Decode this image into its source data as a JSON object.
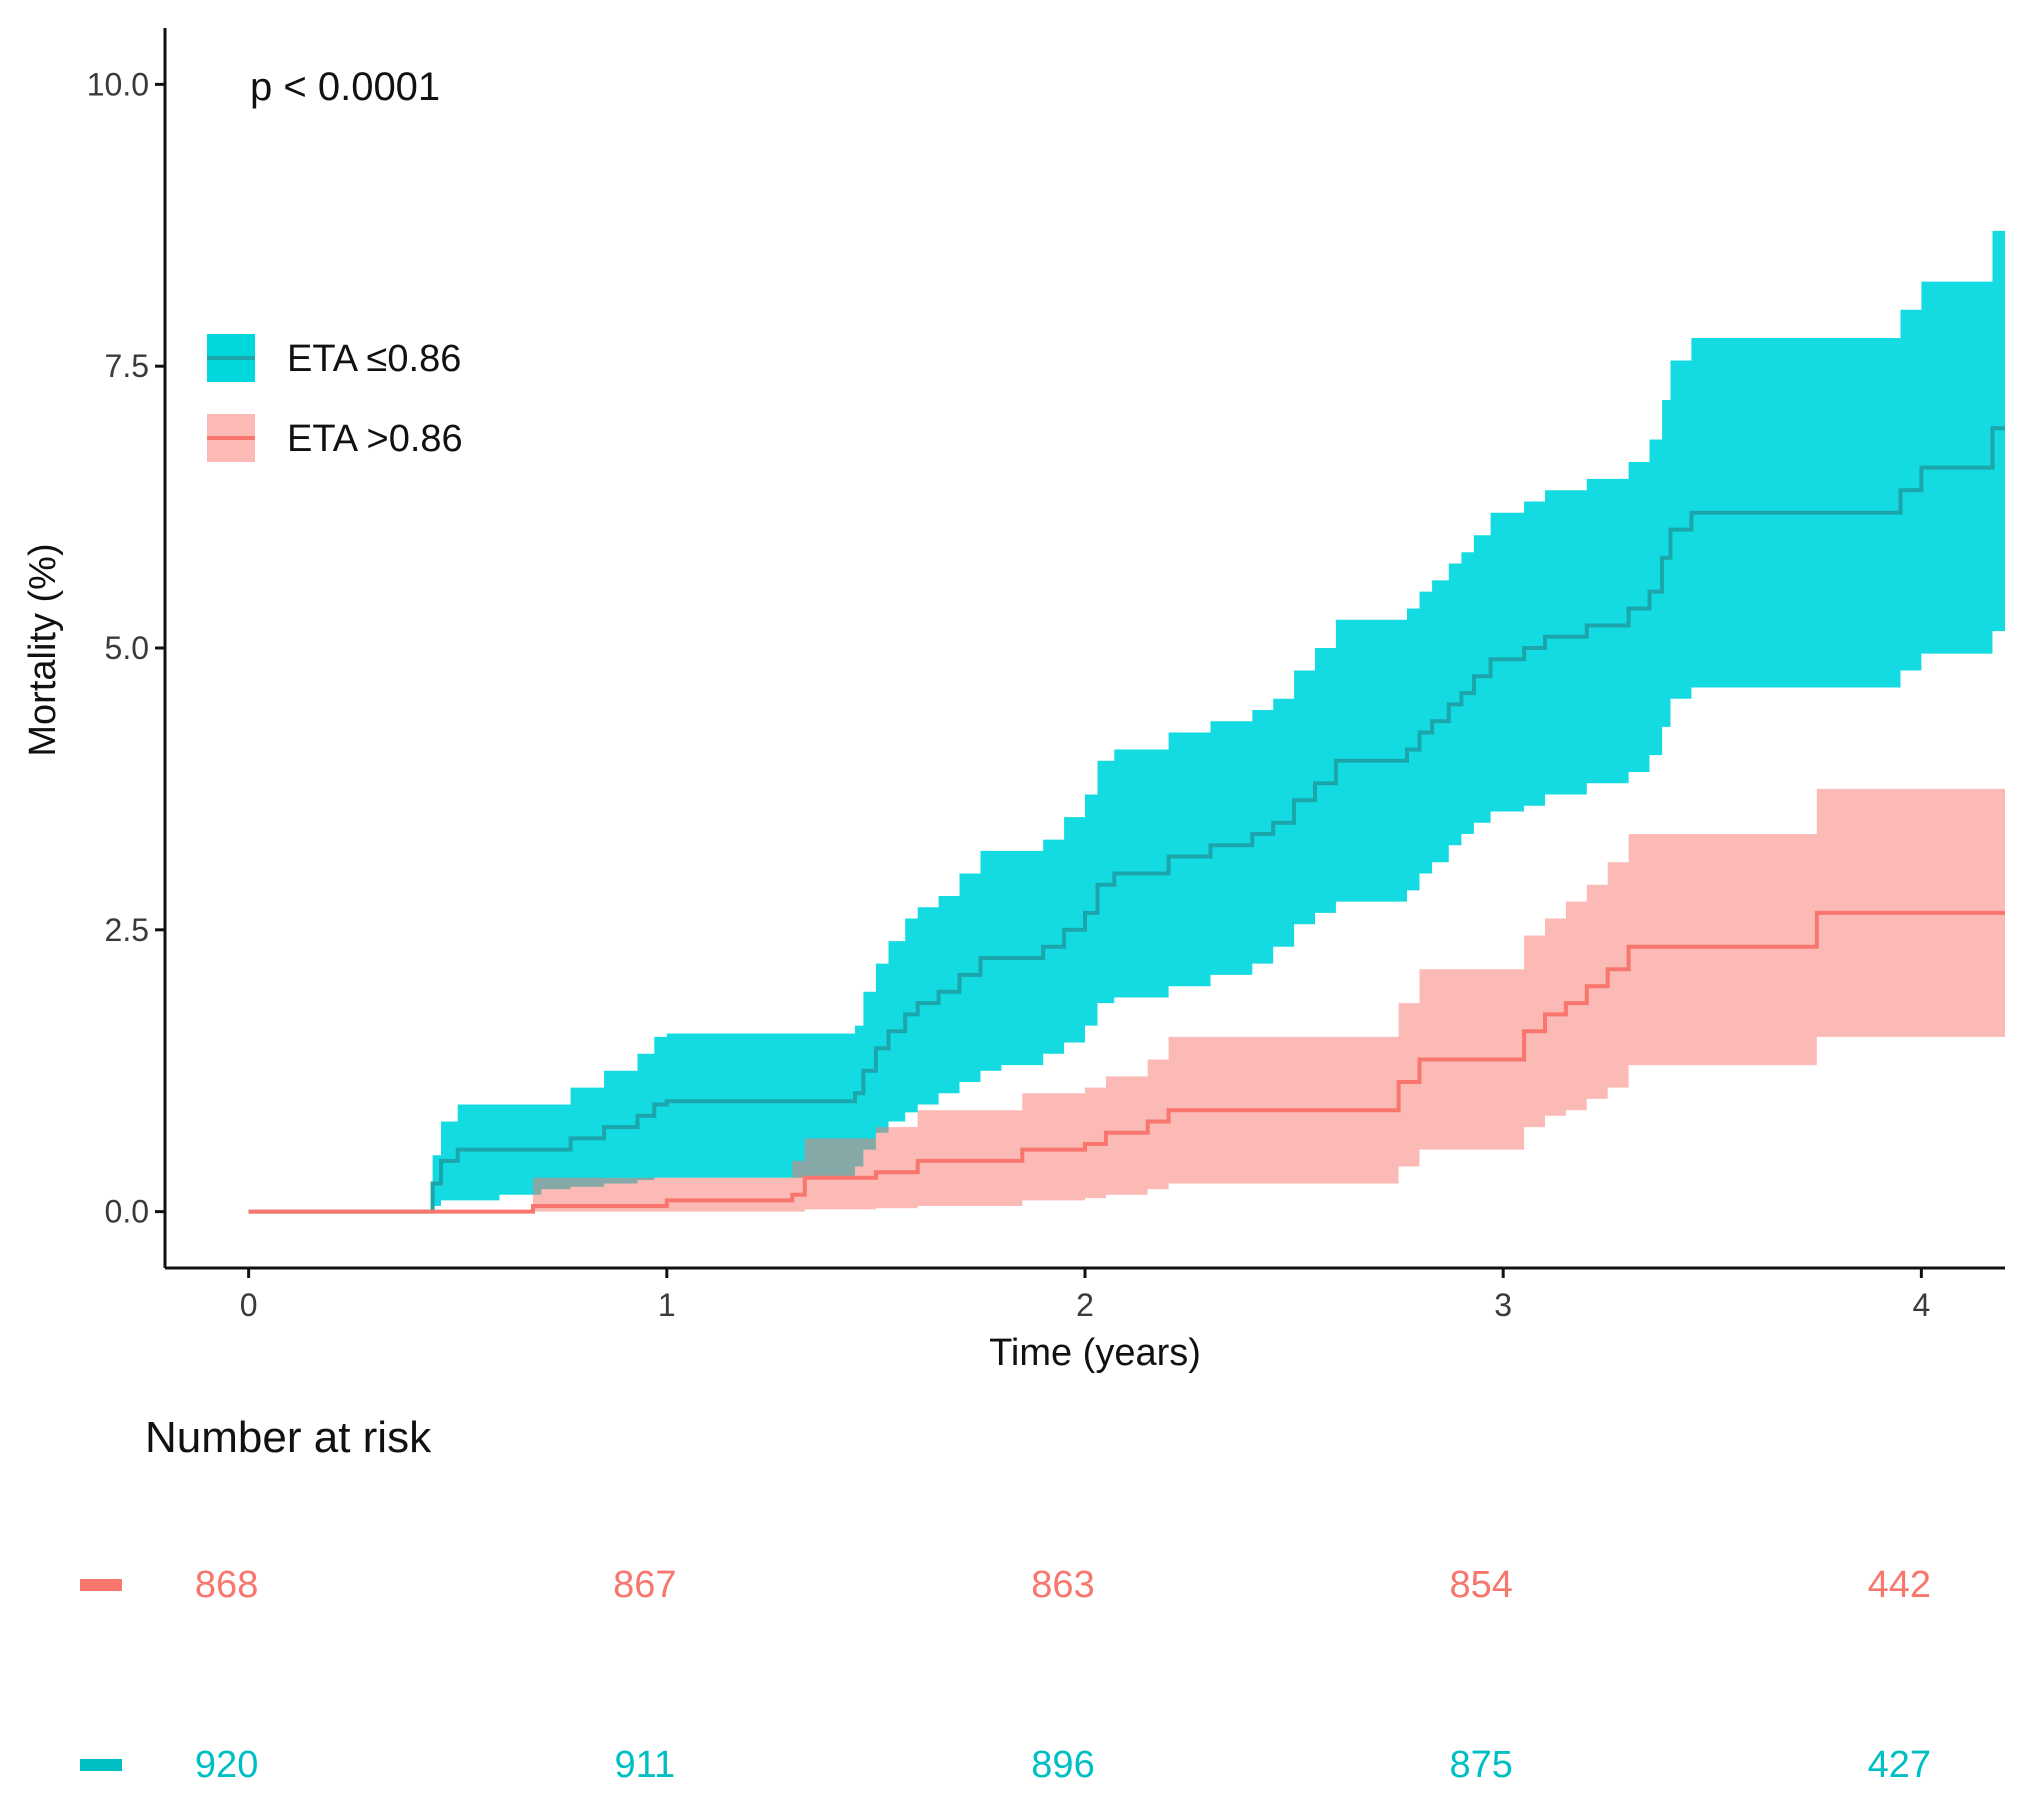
{
  "chart_data": {
    "type": "line",
    "subtype": "kaplan-meier-cumulative-mortality",
    "title": "",
    "annotation": "p < 0.0001",
    "xlabel": "Time (years)",
    "ylabel": "Mortality (%)",
    "xlim": [
      -0.2,
      4.2
    ],
    "ylim": [
      -0.5,
      10.5
    ],
    "xticks": [
      0,
      1,
      2,
      3,
      4
    ],
    "xtick_labels": [
      "0",
      "1",
      "2",
      "3",
      "4"
    ],
    "yticks": [
      0,
      2.5,
      5,
      7.5,
      10
    ],
    "ytick_labels": [
      "0.0",
      "2.5",
      "5.0",
      "7.5",
      "10.0"
    ],
    "grid": false,
    "legend_position": "top-left",
    "series": [
      {
        "name": "ETA ≤0.86",
        "color": "#00BFC4",
        "band_color": "#00D8DE",
        "x": [
          0,
          0.43,
          0.44,
          0.46,
          0.5,
          0.6,
          0.7,
          0.77,
          0.85,
          0.93,
          0.97,
          1.0,
          1.3,
          1.45,
          1.47,
          1.5,
          1.53,
          1.57,
          1.6,
          1.65,
          1.7,
          1.75,
          1.8,
          1.9,
          1.95,
          2.0,
          2.03,
          2.07,
          2.2,
          2.3,
          2.4,
          2.45,
          2.5,
          2.55,
          2.6,
          2.7,
          2.77,
          2.8,
          2.83,
          2.87,
          2.9,
          2.93,
          2.97,
          3.0,
          3.05,
          3.1,
          3.2,
          3.3,
          3.35,
          3.38,
          3.4,
          3.45,
          3.5,
          3.7,
          3.9,
          3.95,
          4.0,
          4.17,
          4.2
        ],
        "y": [
          0,
          0,
          0.25,
          0.45,
          0.55,
          0.55,
          0.55,
          0.65,
          0.75,
          0.85,
          0.95,
          0.98,
          0.98,
          1.05,
          1.25,
          1.45,
          1.6,
          1.75,
          1.85,
          1.95,
          2.1,
          2.25,
          2.25,
          2.35,
          2.5,
          2.65,
          2.9,
          3.0,
          3.15,
          3.25,
          3.35,
          3.45,
          3.65,
          3.8,
          4.0,
          4.0,
          4.1,
          4.25,
          4.35,
          4.5,
          4.6,
          4.75,
          4.9,
          4.9,
          5.0,
          5.1,
          5.2,
          5.35,
          5.5,
          5.8,
          6.05,
          6.2,
          6.2,
          6.2,
          6.2,
          6.4,
          6.6,
          6.95,
          6.95
        ],
        "lower": [
          0,
          0,
          0.05,
          0.1,
          0.1,
          0.15,
          0.2,
          0.22,
          0.25,
          0.28,
          0.3,
          0.3,
          0.3,
          0.4,
          0.55,
          0.7,
          0.8,
          0.88,
          0.95,
          1.05,
          1.15,
          1.25,
          1.3,
          1.4,
          1.5,
          1.65,
          1.85,
          1.9,
          2.0,
          2.1,
          2.2,
          2.35,
          2.55,
          2.65,
          2.75,
          2.75,
          2.85,
          3.0,
          3.1,
          3.25,
          3.35,
          3.45,
          3.55,
          3.55,
          3.6,
          3.7,
          3.8,
          3.9,
          4.05,
          4.3,
          4.55,
          4.65,
          4.65,
          4.65,
          4.65,
          4.8,
          4.95,
          5.15,
          5.15
        ],
        "upper": [
          0,
          0,
          0.5,
          0.8,
          0.95,
          0.95,
          0.95,
          1.1,
          1.25,
          1.4,
          1.55,
          1.58,
          1.58,
          1.65,
          1.95,
          2.2,
          2.4,
          2.6,
          2.7,
          2.8,
          3.0,
          3.2,
          3.2,
          3.3,
          3.5,
          3.7,
          4.0,
          4.1,
          4.25,
          4.35,
          4.45,
          4.55,
          4.8,
          5.0,
          5.25,
          5.25,
          5.35,
          5.5,
          5.6,
          5.75,
          5.85,
          6.0,
          6.2,
          6.2,
          6.3,
          6.4,
          6.5,
          6.65,
          6.85,
          7.2,
          7.55,
          7.75,
          7.75,
          7.75,
          7.75,
          8.0,
          8.25,
          8.7,
          8.7
        ],
        "at_risk": [
          920,
          911,
          896,
          875,
          427
        ]
      },
      {
        "name": "ETA >0.86",
        "color": "#F8766D",
        "band_color": "#F8766D",
        "x": [
          0,
          0.45,
          0.65,
          0.68,
          1.0,
          1.3,
          1.33,
          1.5,
          1.6,
          1.85,
          2.0,
          2.05,
          2.15,
          2.2,
          2.5,
          2.75,
          2.8,
          3.0,
          3.05,
          3.1,
          3.15,
          3.2,
          3.25,
          3.3,
          3.5,
          3.75,
          4.2
        ],
        "y": [
          0,
          0,
          0,
          0.05,
          0.1,
          0.15,
          0.3,
          0.35,
          0.45,
          0.55,
          0.6,
          0.7,
          0.8,
          0.9,
          0.9,
          1.15,
          1.35,
          1.35,
          1.6,
          1.75,
          1.85,
          2.0,
          2.15,
          2.35,
          2.35,
          2.65,
          2.65
        ],
        "lower": [
          0,
          0,
          0,
          0.0,
          0.0,
          0.0,
          0.02,
          0.03,
          0.05,
          0.1,
          0.12,
          0.15,
          0.2,
          0.25,
          0.25,
          0.4,
          0.55,
          0.55,
          0.75,
          0.85,
          0.9,
          1.0,
          1.1,
          1.3,
          1.3,
          1.55,
          1.55
        ],
        "upper": [
          0,
          0,
          0,
          0.3,
          0.3,
          0.45,
          0.65,
          0.75,
          0.9,
          1.05,
          1.1,
          1.2,
          1.35,
          1.55,
          1.55,
          1.85,
          2.15,
          2.15,
          2.45,
          2.6,
          2.75,
          2.9,
          3.1,
          3.35,
          3.35,
          3.75,
          3.75
        ],
        "at_risk": [
          868,
          867,
          863,
          854,
          442
        ]
      }
    ],
    "risk_table": {
      "title": "Number at risk",
      "times": [
        0,
        1,
        2,
        3,
        4
      ],
      "rows": [
        {
          "series": "ETA >0.86",
          "color": "#F8766D",
          "values": [
            "868",
            "867",
            "863",
            "854",
            "442"
          ]
        },
        {
          "series": "ETA ≤0.86",
          "color": "#00BFC4",
          "values": [
            "920",
            "911",
            "896",
            "875",
            "427"
          ]
        }
      ]
    }
  }
}
